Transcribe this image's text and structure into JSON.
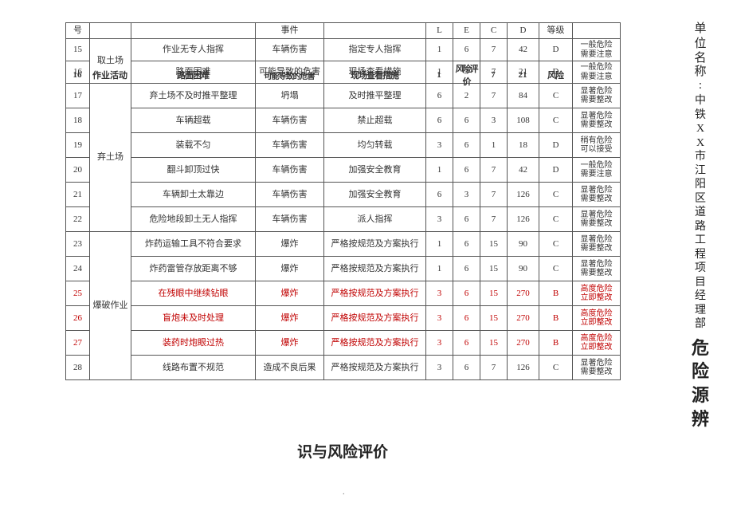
{
  "header": {
    "num": "号",
    "loc": "",
    "act": "",
    "evt": "事件",
    "meas": "",
    "L": "L",
    "E": "E",
    "C": "C",
    "D": "D",
    "grade": "等级",
    "risk": ""
  },
  "rows": [
    {
      "n": "15",
      "loc": "取土场",
      "loc_span": 2,
      "act": "作业无专人指挥",
      "evt": "车辆伤害",
      "meas": "指定专人指挥",
      "L": "1",
      "E": "6",
      "C": "7",
      "D": "42",
      "grade": "D",
      "risk1": "一般危险",
      "risk2": "需要注意"
    },
    {
      "n": "16",
      "act": "路面困难",
      "evt": "可能导致的危害",
      "meas": "现场查看措施",
      "L": "1",
      "E": "3",
      "C": "7",
      "D": "21",
      "grade": "D",
      "risk1": "一般危险",
      "risk2": "需要注意"
    },
    {
      "n": "17",
      "loc": "弃土场",
      "loc_span": 6,
      "act": "弃土场不及时推平整理",
      "evt": "坍塌",
      "meas": "及时推平整理",
      "L": "6",
      "E": "2",
      "C": "7",
      "D": "84",
      "grade": "C",
      "risk1": "显著危险",
      "risk2": "需要整改"
    },
    {
      "n": "18",
      "act": "车辆超载",
      "evt": "车辆伤害",
      "meas": "禁止超载",
      "L": "6",
      "E": "6",
      "C": "3",
      "D": "108",
      "grade": "C",
      "risk1": "显著危险",
      "risk2": "需要整改"
    },
    {
      "n": "19",
      "act": "装载不匀",
      "evt": "车辆伤害",
      "meas": "均匀转载",
      "L": "3",
      "E": "6",
      "C": "1",
      "D": "18",
      "grade": "D",
      "risk1": "稍有危险",
      "risk2": "可以接受"
    },
    {
      "n": "20",
      "act": "翻斗卸顶过快",
      "evt": "车辆伤害",
      "meas": "加强安全教育",
      "L": "1",
      "E": "6",
      "C": "7",
      "D": "42",
      "grade": "D",
      "risk1": "一般危险",
      "risk2": "需要注意"
    },
    {
      "n": "21",
      "act": "车辆卸土太靠边",
      "evt": "车辆伤害",
      "meas": "加强安全教育",
      "L": "6",
      "E": "3",
      "C": "7",
      "D": "126",
      "grade": "C",
      "risk1": "显著危险",
      "risk2": "需要整改"
    },
    {
      "n": "22",
      "act": "危险地段卸土无人指挥",
      "evt": "车辆伤害",
      "meas": "派人指挥",
      "L": "3",
      "E": "6",
      "C": "7",
      "D": "126",
      "grade": "C",
      "risk1": "显著危险",
      "risk2": "需要整改"
    },
    {
      "n": "23",
      "loc": "爆破作业",
      "loc_span": 6,
      "act": "炸药运输工具不符合要求",
      "evt": "爆炸",
      "meas": "严格按规范及方案执行",
      "L": "1",
      "E": "6",
      "C": "15",
      "D": "90",
      "grade": "C",
      "risk1": "显著危险",
      "risk2": "需要整改"
    },
    {
      "n": "24",
      "act": "炸药雷管存放距离不够",
      "evt": "爆炸",
      "meas": "严格按规范及方案执行",
      "L": "1",
      "E": "6",
      "C": "15",
      "D": "90",
      "grade": "C",
      "risk1": "显著危险",
      "risk2": "需要整改"
    },
    {
      "n": "25",
      "red": true,
      "act": "在残眼中继续钻眼",
      "evt": "爆炸",
      "meas": "严格按规范及方案执行",
      "L": "3",
      "E": "6",
      "C": "15",
      "D": "270",
      "grade": "B",
      "risk1": "高度危险",
      "risk2": "立即整改"
    },
    {
      "n": "26",
      "red": true,
      "act": "盲炮未及时处理",
      "evt": "爆炸",
      "meas": "严格按规范及方案执行",
      "L": "3",
      "E": "6",
      "C": "15",
      "D": "270",
      "grade": "B",
      "risk1": "高度危险",
      "risk2": "立即整改"
    },
    {
      "n": "27",
      "red": true,
      "act": "装药时炮眼过热",
      "evt": "爆炸",
      "meas": "严格按规范及方案执行",
      "L": "3",
      "E": "6",
      "C": "15",
      "D": "270",
      "grade": "B",
      "risk1": "高度危险",
      "risk2": "立即整改"
    },
    {
      "n": "28",
      "act": "线路布置不规范",
      "evt": "造成不良后果",
      "meas": "严格按规范及方案执行",
      "L": "3",
      "E": "6",
      "C": "7",
      "D": "126",
      "grade": "C",
      "risk1": "显著危险",
      "risk2": "需要整改"
    }
  ],
  "overlay": {
    "n": "16",
    "loc": "作业活动",
    "act": "路面困难",
    "evt": "可能导致的危害",
    "meas": "现场查看措施",
    "L": "1",
    "E": "风险评价",
    "C": "7",
    "D": "21",
    "grade": "风险",
    "risk": ""
  },
  "bottom_title": "识与风险评价",
  "bottom_dot": ".",
  "side": {
    "unit": "单",
    "name_label": "位 名 称:",
    "org": "中铁XX市江阳区道路工程项目经理部",
    "big": "危 险 源 辨"
  }
}
